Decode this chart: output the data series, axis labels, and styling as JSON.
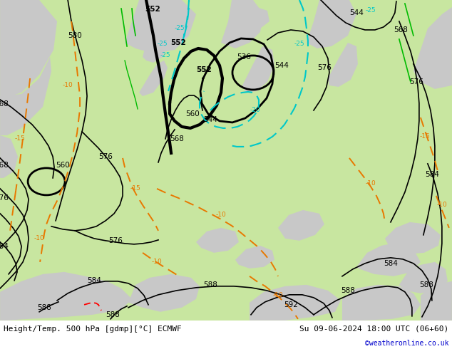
{
  "title_left": "Height/Temp. 500 hPa [gdmp][°C] ECMWF",
  "title_right": "Su 09-06-2024 18:00 UTC (06+60)",
  "credit": "©weatheronline.co.uk",
  "bg_green": "#c8e6a0",
  "bg_gray": "#c8c8c8",
  "black": "#000000",
  "orange": "#e87800",
  "cyan": "#00c8c8",
  "green_line": "#00bb00",
  "red": "#ff0000",
  "credit_color": "#0000cc",
  "figsize": [
    6.34,
    4.9
  ],
  "dpi": 100
}
